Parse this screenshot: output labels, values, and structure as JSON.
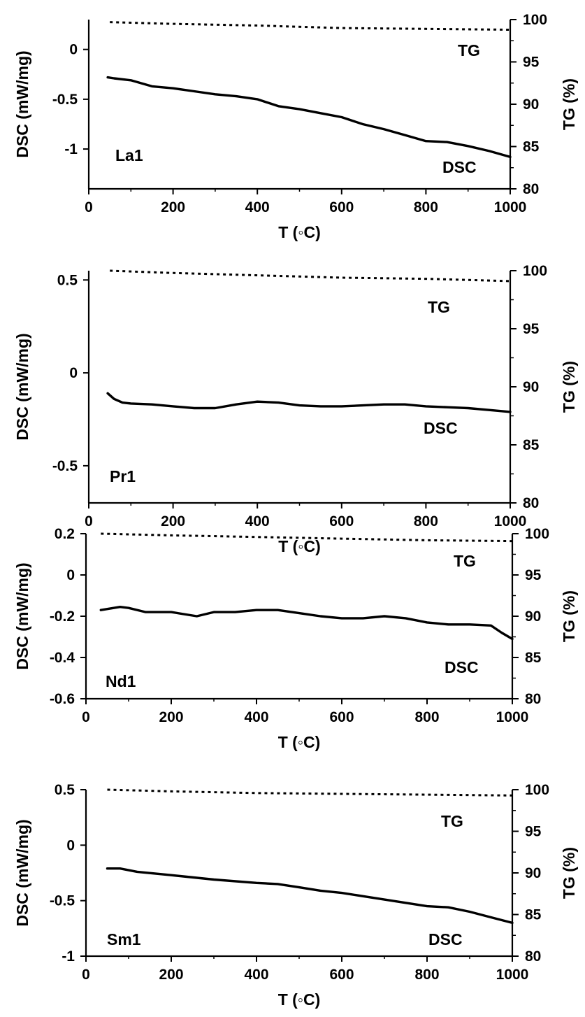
{
  "chart_data": [
    {
      "type": "line",
      "sample_label": "La1",
      "xlabel": "T (◦C)",
      "ylabel_left": "DSC (mW/mg)",
      "ylabel_right": "TG (%)",
      "xlim": [
        0,
        1000
      ],
      "ylim_left": [
        -1.4,
        0.3
      ],
      "ylim_right": [
        80,
        100
      ],
      "xticks": [
        0,
        200,
        400,
        600,
        800,
        1000
      ],
      "yticks_left": [
        -1,
        -0.5,
        0
      ],
      "yticks_right": [
        80,
        85,
        90,
        95,
        100
      ],
      "grid": false,
      "series": [
        {
          "name": "TG",
          "axis": "right",
          "style": "dotted",
          "x": [
            50,
            200,
            400,
            600,
            800,
            1000
          ],
          "y": [
            99.7,
            99.5,
            99.3,
            99.0,
            98.9,
            98.8
          ]
        },
        {
          "name": "DSC",
          "axis": "left",
          "style": "solid",
          "x": [
            45,
            60,
            100,
            150,
            200,
            250,
            300,
            350,
            400,
            450,
            500,
            550,
            600,
            650,
            700,
            750,
            800,
            850,
            900,
            950,
            1000
          ],
          "y": [
            -0.28,
            -0.29,
            -0.31,
            -0.37,
            -0.39,
            -0.42,
            -0.45,
            -0.47,
            -0.5,
            -0.57,
            -0.6,
            -0.64,
            -0.68,
            -0.75,
            -0.8,
            -0.86,
            -0.92,
            -0.93,
            -0.97,
            -1.02,
            -1.08
          ]
        }
      ]
    },
    {
      "type": "line",
      "sample_label": "Pr1",
      "xlabel": "T (◦C)",
      "ylabel_left": "DSC (mW/mg)",
      "ylabel_right": "TG (%)",
      "xlim": [
        0,
        1000
      ],
      "ylim_left": [
        -0.7,
        0.55
      ],
      "ylim_right": [
        80,
        100
      ],
      "xticks": [
        0,
        200,
        400,
        600,
        800,
        1000
      ],
      "yticks_left": [
        -0.5,
        0,
        0.5
      ],
      "yticks_right": [
        80,
        85,
        90,
        95,
        100
      ],
      "grid": false,
      "series": [
        {
          "name": "TG",
          "axis": "right",
          "style": "dotted",
          "x": [
            50,
            200,
            400,
            600,
            800,
            1000
          ],
          "y": [
            100,
            99.8,
            99.6,
            99.4,
            99.3,
            99.1
          ]
        },
        {
          "name": "DSC",
          "axis": "left",
          "style": "solid",
          "x": [
            45,
            60,
            80,
            100,
            150,
            200,
            250,
            300,
            350,
            400,
            450,
            500,
            550,
            600,
            650,
            700,
            750,
            800,
            850,
            900,
            950,
            1000
          ],
          "y": [
            -0.11,
            -0.14,
            -0.16,
            -0.165,
            -0.17,
            -0.18,
            -0.19,
            -0.19,
            -0.17,
            -0.155,
            -0.16,
            -0.175,
            -0.18,
            -0.18,
            -0.175,
            -0.17,
            -0.17,
            -0.18,
            -0.185,
            -0.19,
            -0.2,
            -0.21
          ]
        }
      ]
    },
    {
      "type": "line",
      "sample_label": "Nd1",
      "xlabel": "T (◦C)",
      "ylabel_left": "DSC (mW/mg)",
      "ylabel_right": "TG (%)",
      "xlim": [
        0,
        1000
      ],
      "ylim_left": [
        -0.6,
        0.2
      ],
      "ylim_right": [
        80,
        100
      ],
      "xticks": [
        0,
        200,
        400,
        600,
        800,
        1000
      ],
      "yticks_left": [
        -0.6,
        -0.4,
        -0.2,
        0,
        0.2
      ],
      "yticks_right": [
        80,
        85,
        90,
        95,
        100
      ],
      "grid": false,
      "series": [
        {
          "name": "TG",
          "axis": "right",
          "style": "dotted",
          "x": [
            35,
            200,
            400,
            600,
            800,
            1000
          ],
          "y": [
            100,
            99.8,
            99.6,
            99.4,
            99.2,
            99.1
          ]
        },
        {
          "name": "DSC",
          "axis": "left",
          "style": "solid",
          "x": [
            35,
            80,
            100,
            140,
            200,
            260,
            300,
            350,
            400,
            450,
            500,
            550,
            600,
            650,
            700,
            750,
            800,
            850,
            900,
            950,
            975,
            1000
          ],
          "y": [
            -0.17,
            -0.155,
            -0.16,
            -0.18,
            -0.18,
            -0.2,
            -0.18,
            -0.18,
            -0.17,
            -0.17,
            -0.185,
            -0.2,
            -0.21,
            -0.21,
            -0.2,
            -0.21,
            -0.23,
            -0.24,
            -0.24,
            -0.245,
            -0.28,
            -0.31
          ]
        }
      ]
    },
    {
      "type": "line",
      "sample_label": "Sm1",
      "xlabel": "T (◦C)",
      "ylabel_left": "DSC (mW/mg)",
      "ylabel_right": "TG (%)",
      "xlim": [
        0,
        1000
      ],
      "ylim_left": [
        -1,
        0.5
      ],
      "ylim_right": [
        80,
        100
      ],
      "xticks": [
        0,
        200,
        400,
        600,
        800,
        1000
      ],
      "yticks_left": [
        -1,
        -0.5,
        0,
        0.5
      ],
      "yticks_right": [
        80,
        85,
        90,
        95,
        100
      ],
      "grid": false,
      "series": [
        {
          "name": "TG",
          "axis": "right",
          "style": "dotted",
          "x": [
            50,
            200,
            400,
            600,
            800,
            1000
          ],
          "y": [
            100,
            99.8,
            99.6,
            99.5,
            99.4,
            99.3
          ]
        },
        {
          "name": "DSC",
          "axis": "left",
          "style": "solid",
          "x": [
            50,
            80,
            120,
            200,
            300,
            400,
            450,
            500,
            550,
            600,
            650,
            700,
            750,
            800,
            850,
            900,
            950,
            1000
          ],
          "y": [
            -0.21,
            -0.21,
            -0.24,
            -0.27,
            -0.31,
            -0.34,
            -0.35,
            -0.38,
            -0.41,
            -0.43,
            -0.46,
            -0.49,
            -0.52,
            -0.55,
            -0.56,
            -0.6,
            -0.65,
            -0.7
          ]
        }
      ]
    }
  ]
}
